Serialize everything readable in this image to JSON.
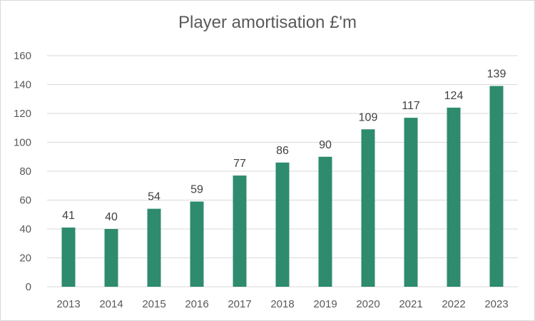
{
  "chart_data": {
    "type": "bar",
    "title": "Player amortisation £'m",
    "categories": [
      "2013",
      "2014",
      "2015",
      "2016",
      "2017",
      "2018",
      "2019",
      "2020",
      "2021",
      "2022",
      "2023"
    ],
    "values": [
      41,
      40,
      54,
      59,
      77,
      86,
      90,
      109,
      117,
      124,
      139
    ],
    "xlabel": "",
    "ylabel": "",
    "ylim": [
      0,
      160
    ],
    "yticks": [
      0,
      20,
      40,
      60,
      80,
      100,
      120,
      140,
      160
    ],
    "grid": true,
    "legend": "none",
    "bar_color": "#2e8b6e",
    "data_labels": true
  }
}
